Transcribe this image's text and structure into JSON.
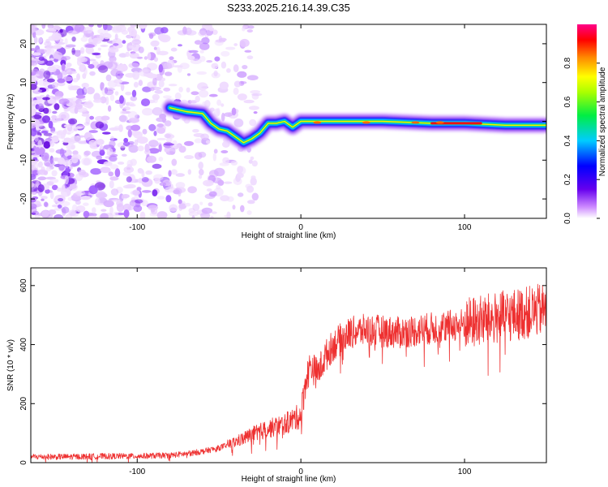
{
  "title": "S233.2025.216.14.39.C35",
  "chart_data": [
    {
      "type": "heatmap",
      "xlabel": "Height of straight line (km)",
      "ylabel": "Frequency (Hz)",
      "xlim": [
        -165,
        150
      ],
      "ylim": [
        -25,
        25
      ],
      "xticks": [
        -100,
        0,
        100
      ],
      "yticks": [
        -20,
        -10,
        0,
        10,
        20
      ],
      "xtick_labels": [
        "-100",
        "0",
        "100"
      ],
      "ytick_labels": [
        "-20",
        "-10",
        "0",
        "10",
        "20"
      ],
      "colorbar": {
        "label": "Normalized spectral amplitude",
        "range": [
          0,
          1
        ],
        "ticks": [
          0.0,
          0.2,
          0.4,
          0.6,
          0.8
        ],
        "tick_labels": [
          "0.0",
          "0.2",
          "0.4",
          "0.6",
          "0.8"
        ],
        "colormap": "rainbow (white-violet-blue-cyan-green-yellow-red-magenta)"
      },
      "ridge": {
        "description": "Narrow-band signal line",
        "points": [
          {
            "x": -80,
            "y": 3.5
          },
          {
            "x": -70,
            "y": 2.5
          },
          {
            "x": -60,
            "y": 2.0
          },
          {
            "x": -55,
            "y": -0.5
          },
          {
            "x": -50,
            "y": -2.0
          },
          {
            "x": -45,
            "y": -2.5
          },
          {
            "x": -40,
            "y": -4.0
          },
          {
            "x": -35,
            "y": -5.5
          },
          {
            "x": -30,
            "y": -4.5
          },
          {
            "x": -25,
            "y": -3.0
          },
          {
            "x": -20,
            "y": -0.5
          },
          {
            "x": -15,
            "y": -0.5
          },
          {
            "x": -10,
            "y": 0.0
          },
          {
            "x": -5,
            "y": -1.5
          },
          {
            "x": 0,
            "y": 0.0
          },
          {
            "x": 20,
            "y": 0.0
          },
          {
            "x": 50,
            "y": 0.0
          },
          {
            "x": 80,
            "y": -0.5
          },
          {
            "x": 100,
            "y": -0.5
          },
          {
            "x": 125,
            "y": -1.0
          },
          {
            "x": 150,
            "y": -1.0
          }
        ],
        "peak_amplitude_x_range": [
          80,
          110
        ]
      },
      "noise_region_x_range": [
        -165,
        -60
      ]
    },
    {
      "type": "line",
      "xlabel": "Height of straight line (km)",
      "ylabel": "SNR (10 * v/v)",
      "xlim": [
        -165,
        150
      ],
      "ylim": [
        0,
        660
      ],
      "xticks": [
        -100,
        0,
        100
      ],
      "yticks": [
        0,
        200,
        400,
        600
      ],
      "xtick_labels": [
        "-100",
        "0",
        "100"
      ],
      "ytick_labels": [
        "0",
        "200",
        "400",
        "600"
      ],
      "color": "#ee3030",
      "series": [
        {
          "x": [
            -165,
            -140,
            -120,
            -100,
            -80,
            -70,
            -60,
            -50,
            -40,
            -30,
            -20,
            -10,
            0,
            3,
            6,
            10,
            15,
            20,
            30,
            40,
            60,
            80,
            100,
            120,
            140,
            150
          ],
          "values": [
            20,
            20,
            22,
            22,
            25,
            30,
            38,
            50,
            70,
            95,
            115,
            130,
            160,
            280,
            330,
            300,
            360,
            400,
            440,
            450,
            440,
            455,
            470,
            490,
            510,
            520
          ]
        }
      ]
    }
  ]
}
